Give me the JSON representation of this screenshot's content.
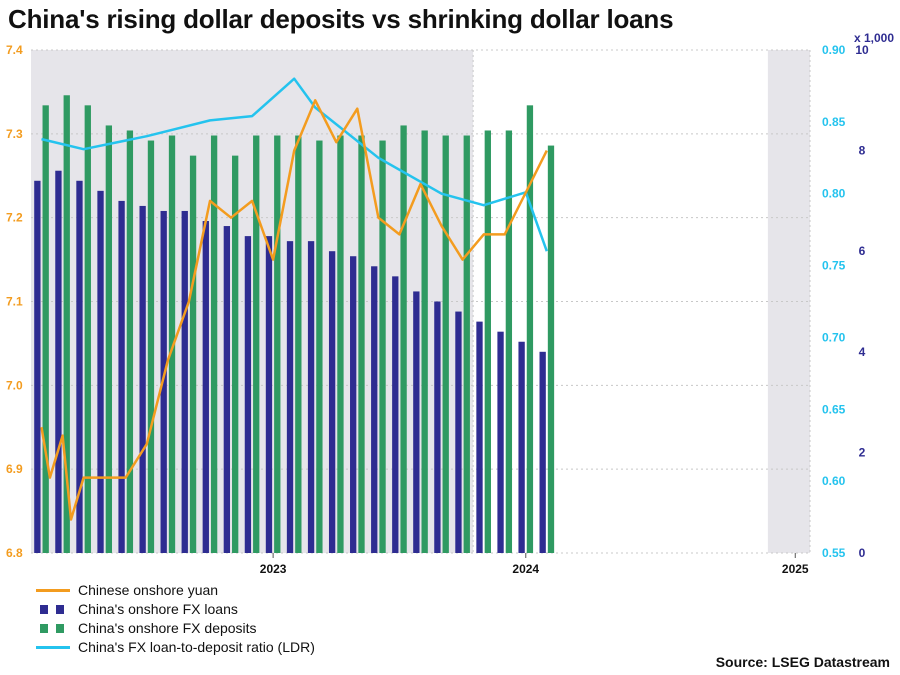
{
  "title": "China's rising dollar deposits vs shrinking dollar loans",
  "source": "Source: LSEG Datastream",
  "colors": {
    "yuan": "#f39c1f",
    "loans": "#2e2c91",
    "deposits": "#2f9a62",
    "ldr": "#24c3ee",
    "left_axis": "#f39c1f",
    "ratio_axis": "#24c3ee",
    "count_axis": "#2e2c91",
    "shade": "#e6e5ea"
  },
  "legend": [
    {
      "label": "Chinese onshore yuan",
      "kind": "line",
      "color_key": "yuan"
    },
    {
      "label": "China's onshore FX loans",
      "kind": "square",
      "color_key": "loans"
    },
    {
      "label": "China's onshore FX deposits",
      "kind": "square",
      "color_key": "deposits"
    },
    {
      "label": "China's FX loan-to-deposit ratio (LDR)",
      "kind": "line",
      "color_key": "ldr"
    }
  ],
  "chart_data": {
    "type": "bar+line",
    "title": "China's rising dollar deposits vs shrinking dollar loans",
    "x_labels": [
      "2023",
      "2024",
      "2025"
    ],
    "shaded_periods": [
      [
        "2022-01",
        "2023-09"
      ],
      [
        "2024-12",
        "2025-01"
      ]
    ],
    "axes": {
      "left": {
        "series": "Chinese onshore yuan",
        "range": [
          6.8,
          7.4
        ],
        "ticks": [
          "6.8",
          "6.9",
          "7.0",
          "7.1",
          "7.2",
          "7.3",
          "7.4"
        ]
      },
      "right_ratio": {
        "series": "China's FX loan-to-deposit ratio (LDR)",
        "range": [
          0.55,
          0.9
        ],
        "ticks": [
          "0.55",
          "0.60",
          "0.65",
          "0.70",
          "0.75",
          "0.80",
          "0.85",
          "0.90"
        ]
      },
      "right_count": {
        "series": "FX loans and deposits",
        "range": [
          0,
          10
        ],
        "unit_label": "x 1,000",
        "ticks": [
          "0",
          "2",
          "4",
          "6",
          "8",
          "10"
        ]
      }
    },
    "categories": [
      "2022-01",
      "2022-02",
      "2022-03",
      "2022-04",
      "2022-05",
      "2022-06",
      "2022-07",
      "2022-08",
      "2022-09",
      "2022-10",
      "2022-11",
      "2022-12",
      "2023-01",
      "2023-02",
      "2023-03",
      "2023-04",
      "2023-05",
      "2023-06",
      "2023-07",
      "2023-08",
      "2023-09",
      "2023-10",
      "2023-11",
      "2023-12",
      "2024-01"
    ],
    "series": [
      {
        "name": "China's onshore FX loans",
        "type": "bar",
        "axis": "right_count",
        "values": [
          7.4,
          7.6,
          7.4,
          7.2,
          7.0,
          6.9,
          6.8,
          6.8,
          6.6,
          6.5,
          6.3,
          6.3,
          6.2,
          6.2,
          6.0,
          5.9,
          5.7,
          5.5,
          5.2,
          5.0,
          4.8,
          4.6,
          4.4,
          4.2,
          4.0
        ]
      },
      {
        "name": "China's onshore FX deposits",
        "type": "bar",
        "axis": "right_count",
        "values": [
          8.9,
          9.1,
          8.9,
          8.5,
          8.4,
          8.2,
          8.3,
          7.9,
          8.3,
          7.9,
          8.3,
          8.3,
          8.3,
          8.2,
          8.3,
          8.3,
          8.2,
          8.5,
          8.4,
          8.3,
          8.3,
          8.4,
          8.4,
          8.9,
          8.1
        ]
      },
      {
        "name": "China's FX loan-to-deposit ratio (LDR)",
        "type": "line",
        "axis": "right_ratio",
        "x": [
          "2022-01",
          "2022-03",
          "2022-06",
          "2022-09",
          "2022-11",
          "2023-01",
          "2023-02",
          "2023-05",
          "2023-08",
          "2023-10",
          "2023-12",
          "2024-01"
        ],
        "values": [
          0.838,
          0.831,
          0.84,
          0.851,
          0.854,
          0.88,
          0.86,
          0.825,
          0.8,
          0.792,
          0.801,
          0.76
        ]
      },
      {
        "name": "Chinese onshore yuan",
        "type": "line",
        "axis": "left",
        "x": [
          "2022-01",
          "2022-01",
          "2022-02",
          "2022-02",
          "2022-03",
          "2022-04",
          "2022-05",
          "2022-06",
          "2022-07",
          "2022-08",
          "2022-09",
          "2022-10",
          "2022-11",
          "2022-12",
          "2023-01",
          "2023-02",
          "2023-03",
          "2023-04",
          "2023-05",
          "2023-06",
          "2023-07",
          "2023-08",
          "2023-09",
          "2023-10",
          "2023-11",
          "2023-12",
          "2024-01"
        ],
        "values": [
          6.95,
          6.89,
          6.94,
          6.84,
          6.89,
          6.89,
          6.89,
          6.93,
          7.03,
          7.1,
          7.22,
          7.2,
          7.22,
          7.15,
          7.28,
          7.34,
          7.29,
          7.33,
          7.2,
          7.18,
          7.24,
          7.19,
          7.15,
          7.18,
          7.18,
          7.23,
          7.28
        ]
      }
    ]
  }
}
